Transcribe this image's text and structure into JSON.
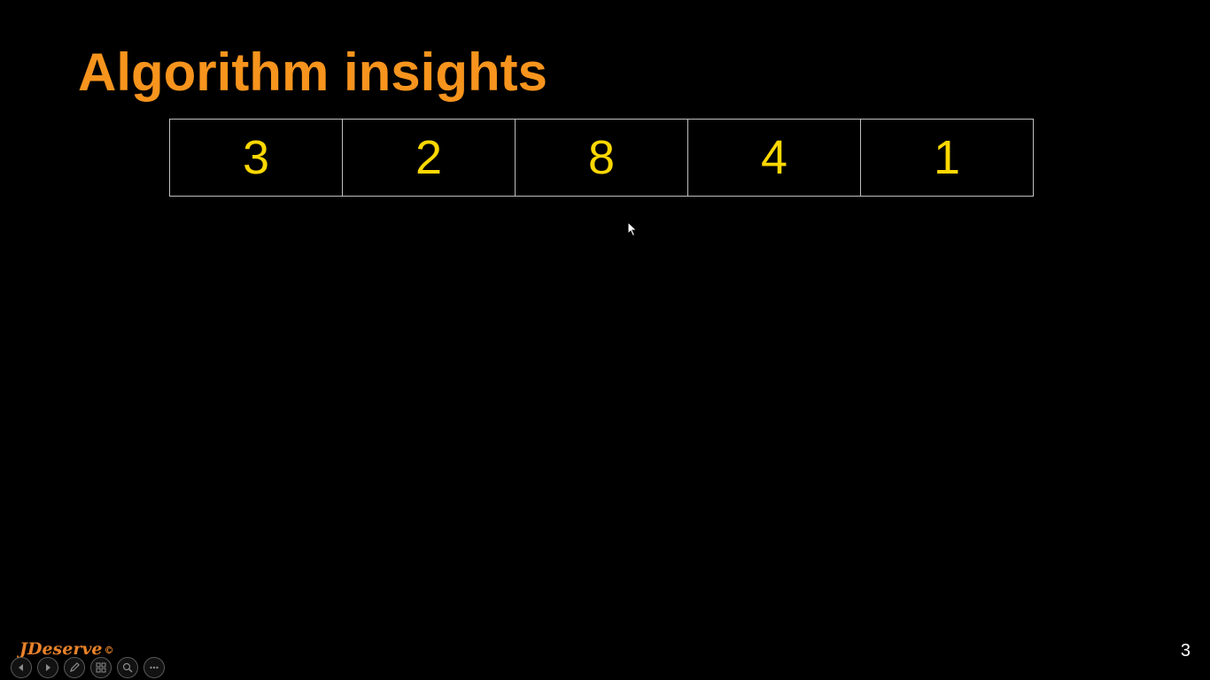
{
  "slide": {
    "title": "Algorithm insights",
    "array_values": [
      "3",
      "2",
      "8",
      "4",
      "1"
    ],
    "page_number": "3"
  },
  "branding": {
    "logo_text": "JDeserve",
    "copyright_symbol": "©"
  },
  "controls": {
    "icons": [
      "previous-icon",
      "next-icon",
      "pen-icon",
      "slides-icon",
      "zoom-icon",
      "more-icon"
    ]
  },
  "colors": {
    "title": "#f7941d",
    "array_text": "#ffd800",
    "border": "#bfbfbf",
    "background": "#000000"
  }
}
